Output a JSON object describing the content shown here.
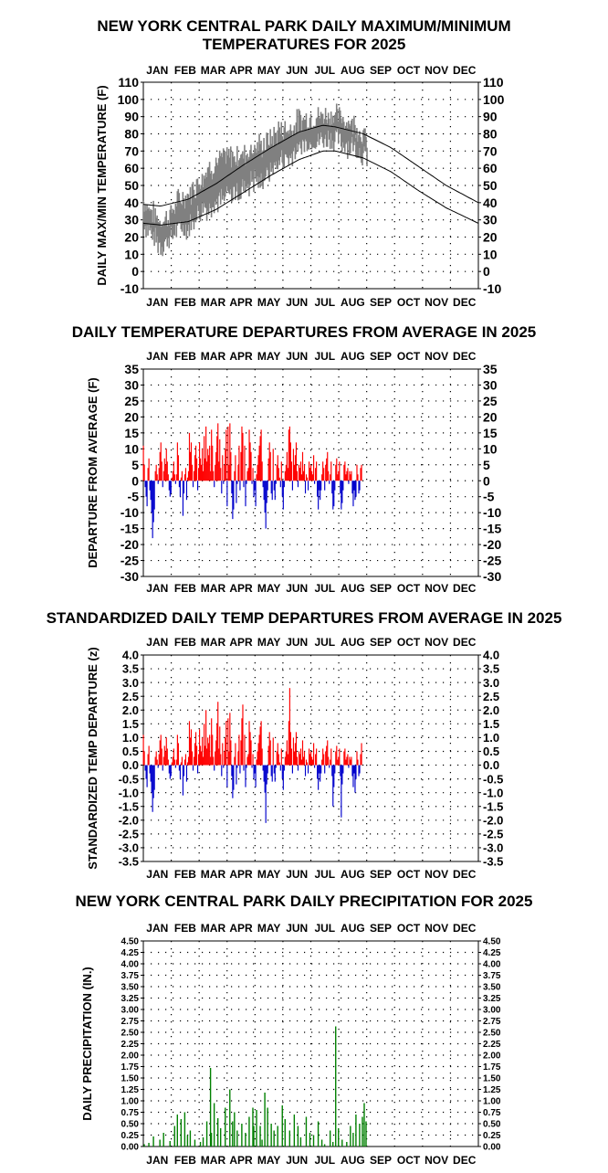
{
  "months": [
    "JAN",
    "FEB",
    "MAR",
    "APR",
    "MAY",
    "JUN",
    "JUL",
    "AUG",
    "SEP",
    "OCT",
    "NOV",
    "DEC"
  ],
  "colors": {
    "observed": "#808080",
    "normal": "#000000",
    "warm": "#ff0000",
    "cold": "#0000cc",
    "precip": "#008000",
    "grid": "#000000"
  },
  "chart_data": [
    {
      "id": "temps",
      "type": "line",
      "title": "NEW YORK CENTRAL PARK DAILY MAXIMUM/MINIMUM",
      "title2": "TEMPERATURES FOR 2025",
      "ylabel": "DAILY MAX/MIN TEMPERATURE (F)",
      "ylim": [
        -10,
        110
      ],
      "yticks": [
        -10,
        0,
        10,
        20,
        30,
        40,
        50,
        60,
        70,
        80,
        90,
        100,
        110
      ],
      "x_range_days": [
        1,
        365
      ],
      "observed_through_day": 244,
      "series": [
        {
          "role": "normal_high",
          "anchors": {
            "day": [
              1,
              20,
              50,
              80,
              110,
              140,
              170,
              196,
              210,
              240,
              270,
              300,
              330,
              365
            ],
            "value": [
              39,
              38,
              42,
              51,
              62,
              72,
              81,
              85,
              84,
              80,
              72,
              61,
              50,
              40
            ]
          }
        },
        {
          "role": "normal_low",
          "anchors": {
            "day": [
              1,
              20,
              50,
              80,
              110,
              140,
              170,
              196,
              210,
              240,
              270,
              300,
              330,
              365
            ],
            "value": [
              28,
              27,
              29,
              36,
              46,
              56,
              65,
              70,
              70,
              66,
              58,
              47,
              37,
              28
            ]
          }
        },
        {
          "role": "observed_range",
          "anchors": {
            "day": [
              1,
              10,
              20,
              30,
              40,
              50,
              60,
              70,
              80,
              90,
              100,
              110,
              120,
              130,
              140,
              150,
              160,
              170,
              180,
              190,
              200,
              210,
              220,
              230,
              240,
              244
            ],
            "value": [
              35,
              28,
              22,
              26,
              34,
              35,
              42,
              48,
              52,
              55,
              56,
              58,
              62,
              63,
              68,
              74,
              74,
              80,
              82,
              83,
              84,
              84,
              81,
              79,
              73,
              71
            ]
          },
          "spread": [
            12,
            14,
            14,
            14,
            16,
            18,
            20,
            22,
            22,
            22,
            22,
            20,
            20,
            20,
            18,
            18,
            18,
            16,
            14,
            14,
            14,
            14,
            14,
            14,
            12,
            12
          ]
        }
      ]
    },
    {
      "id": "departures",
      "type": "bar",
      "title": "DAILY TEMPERATURE DEPARTURES FROM AVERAGE IN 2025",
      "ylabel": "DEPARTURE FROM AVERAGE (F)",
      "ylim": [
        -30,
        35
      ],
      "yticks": [
        -30,
        -25,
        -20,
        -15,
        -10,
        -5,
        0,
        5,
        10,
        15,
        20,
        25,
        30,
        35
      ],
      "x_range_days": [
        1,
        365
      ],
      "x_start_day": 1,
      "values": [
        11,
        5,
        -2,
        -5,
        -8,
        4,
        7,
        -3,
        -6,
        -10,
        -18,
        -13,
        -9,
        3,
        5,
        2,
        -1,
        4,
        9,
        12,
        6,
        -2,
        3,
        7,
        5,
        10,
        6,
        2,
        -3,
        -5,
        -4,
        1,
        3,
        6,
        2,
        -1,
        2,
        12,
        8,
        -2,
        -5,
        1,
        3,
        -11,
        -4,
        2,
        4,
        -6,
        1,
        3,
        15,
        9,
        12,
        5,
        -2,
        3,
        8,
        11,
        7,
        -3,
        4,
        12,
        7,
        5,
        10,
        3,
        14,
        7,
        17,
        6,
        10,
        8,
        11,
        3,
        16,
        11,
        3,
        -2,
        5,
        9,
        14,
        18,
        6,
        13,
        4,
        -4,
        8,
        -1,
        5,
        10,
        16,
        -8,
        17,
        5,
        18,
        9,
        -4,
        -12,
        -9,
        3,
        8,
        -7,
        -1,
        5,
        11,
        -3,
        9,
        17,
        15,
        -2,
        11,
        -8,
        -1,
        3,
        4,
        16,
        12,
        9,
        -1,
        4,
        -5,
        -3,
        -8,
        2,
        5,
        8,
        11,
        14,
        16,
        6,
        -2,
        -6,
        -10,
        -15,
        -7,
        -3,
        7,
        12,
        9,
        -4,
        -6,
        10,
        -3,
        -6,
        -1,
        5,
        8,
        4,
        1,
        -2,
        6,
        -5,
        -9,
        -2,
        3,
        5,
        9,
        4,
        16,
        17,
        12,
        6,
        -3,
        10,
        5,
        8,
        12,
        3,
        -2,
        5,
        4,
        6,
        2,
        9,
        3,
        5,
        -4,
        2,
        1,
        -3,
        6,
        4,
        5,
        3,
        2,
        8,
        -1,
        4,
        6,
        -5,
        -9,
        -3,
        -6,
        -3,
        2,
        6,
        4,
        -3,
        5,
        7,
        9,
        3,
        -1,
        2,
        6,
        -4,
        -9,
        -8,
        -3,
        5,
        7,
        2,
        3,
        6,
        -4,
        -9,
        -7,
        -3,
        5,
        6,
        2,
        3,
        4,
        -1,
        3,
        2,
        3,
        -4,
        -8,
        -3,
        -6,
        -5,
        5,
        2,
        -4,
        -3,
        4,
        5
      ]
    },
    {
      "id": "standardized",
      "type": "bar",
      "title": "STANDARDIZED DAILY TEMP DEPARTURES FROM AVERAGE IN 2025",
      "ylabel": "STANDARDIZED TEMP DEPARTURE (z)",
      "ylim": [
        -3.5,
        4.0
      ],
      "yticks": [
        -3.5,
        -3.0,
        -2.5,
        -2.0,
        -1.5,
        -1.0,
        -0.5,
        0.0,
        0.5,
        1.0,
        1.5,
        2.0,
        2.5,
        3.0,
        3.5,
        4.0
      ],
      "x_range_days": [
        1,
        365
      ],
      "x_start_day": 1,
      "values": [
        1.1,
        0.5,
        -0.2,
        -0.5,
        -0.8,
        0.4,
        0.7,
        -0.3,
        -0.6,
        -1.0,
        -1.7,
        -1.2,
        -0.9,
        0.3,
        0.5,
        0.2,
        -0.1,
        0.4,
        0.9,
        1.1,
        0.6,
        -0.2,
        0.3,
        0.7,
        0.5,
        1.0,
        0.6,
        0.2,
        -0.3,
        -0.5,
        -0.4,
        0.1,
        0.3,
        0.6,
        0.2,
        -0.1,
        0.2,
        1.1,
        0.8,
        -0.2,
        -0.5,
        0.1,
        0.3,
        -1.1,
        -0.4,
        0.2,
        0.4,
        -0.6,
        0.1,
        0.3,
        1.6,
        1.0,
        1.3,
        0.5,
        -0.2,
        0.3,
        0.8,
        1.2,
        0.7,
        -0.3,
        0.4,
        1.3,
        0.7,
        0.5,
        1.0,
        0.3,
        1.5,
        0.7,
        2.0,
        0.6,
        1.0,
        0.8,
        1.1,
        0.3,
        1.7,
        1.1,
        0.3,
        -0.2,
        0.5,
        0.9,
        1.5,
        2.3,
        0.6,
        1.4,
        0.4,
        -0.4,
        0.8,
        -0.1,
        0.5,
        1.0,
        1.6,
        -0.8,
        1.7,
        0.5,
        1.9,
        0.9,
        -0.4,
        -1.2,
        -0.9,
        0.3,
        0.8,
        -0.7,
        -0.1,
        0.5,
        1.1,
        -0.3,
        0.9,
        1.7,
        2.2,
        -0.2,
        1.1,
        -0.8,
        -0.1,
        0.3,
        0.4,
        1.6,
        1.2,
        0.9,
        -0.1,
        0.4,
        -0.5,
        -0.3,
        -0.8,
        0.2,
        0.5,
        0.8,
        1.1,
        1.4,
        1.6,
        0.6,
        -0.2,
        -0.6,
        -1.0,
        -2.1,
        -0.7,
        -0.3,
        0.7,
        1.2,
        0.9,
        -0.4,
        -0.6,
        1.0,
        -0.3,
        -0.6,
        -0.1,
        0.5,
        0.8,
        0.4,
        0.1,
        -0.2,
        0.6,
        -0.5,
        -0.9,
        -0.2,
        0.3,
        0.5,
        0.9,
        0.4,
        1.6,
        2.8,
        1.2,
        0.6,
        -0.3,
        1.0,
        0.5,
        0.8,
        1.2,
        0.3,
        -0.2,
        0.5,
        0.4,
        0.6,
        0.2,
        0.9,
        0.3,
        0.5,
        -0.4,
        0.2,
        0.1,
        -0.3,
        0.6,
        0.4,
        0.5,
        0.3,
        0.2,
        0.8,
        -0.1,
        0.4,
        0.6,
        -0.5,
        -0.9,
        -0.3,
        -0.6,
        -0.3,
        0.2,
        0.6,
        0.4,
        -0.3,
        0.5,
        0.7,
        0.9,
        0.3,
        -0.1,
        0.2,
        0.6,
        -0.4,
        -1.5,
        -0.8,
        -0.3,
        0.5,
        0.7,
        0.2,
        0.3,
        0.6,
        -0.4,
        -1.9,
        -0.7,
        -0.3,
        0.5,
        0.6,
        0.2,
        0.3,
        0.4,
        -0.1,
        0.3,
        0.2,
        0.3,
        -0.4,
        -0.8,
        -0.3,
        -1.0,
        -0.5,
        0.5,
        0.2,
        -0.4,
        -0.3,
        0.4,
        0.8
      ]
    },
    {
      "id": "precip",
      "type": "bar",
      "title": "NEW YORK CENTRAL PARK DAILY PRECIPITATION FOR 2025",
      "ylabel": "DAILY PRECIPITATION (IN.)",
      "ylim": [
        0,
        4.5
      ],
      "yticks": [
        0.0,
        0.25,
        0.5,
        0.75,
        1.0,
        1.25,
        1.5,
        1.75,
        2.0,
        2.25,
        2.5,
        2.75,
        3.0,
        3.25,
        3.5,
        3.75,
        4.0,
        4.25,
        4.5
      ],
      "x_range_days": [
        1,
        365
      ],
      "events": {
        "day": [
          2,
          7,
          12,
          19,
          23,
          30,
          35,
          38,
          42,
          46,
          49,
          52,
          57,
          63,
          66,
          70,
          74,
          75,
          78,
          82,
          85,
          90,
          95,
          98,
          100,
          103,
          108,
          112,
          116,
          120,
          121,
          124,
          128,
          130,
          133,
          136,
          140,
          143,
          147,
          152,
          155,
          160,
          165,
          169,
          172,
          178,
          182,
          186,
          191,
          195,
          198,
          204,
          207,
          210,
          213,
          217,
          222,
          226,
          229,
          232,
          236,
          239,
          241,
          243
        ],
        "value": [
          0.05,
          0.08,
          0.22,
          0.15,
          0.3,
          0.12,
          0.45,
          0.7,
          0.6,
          0.75,
          0.25,
          0.35,
          0.15,
          0.1,
          0.2,
          0.55,
          1.72,
          0.3,
          0.95,
          0.62,
          0.4,
          0.85,
          1.25,
          0.55,
          0.75,
          0.35,
          0.5,
          0.3,
          0.65,
          0.85,
          0.45,
          0.8,
          0.45,
          0.15,
          1.18,
          0.85,
          0.5,
          0.35,
          0.45,
          0.9,
          0.6,
          0.35,
          0.7,
          0.45,
          0.2,
          0.65,
          0.3,
          0.25,
          0.55,
          0.15,
          0.05,
          0.35,
          0.1,
          2.63,
          0.4,
          0.15,
          0.1,
          0.45,
          0.3,
          0.7,
          0.5,
          0.65,
          0.95,
          0.55
        ]
      }
    }
  ]
}
